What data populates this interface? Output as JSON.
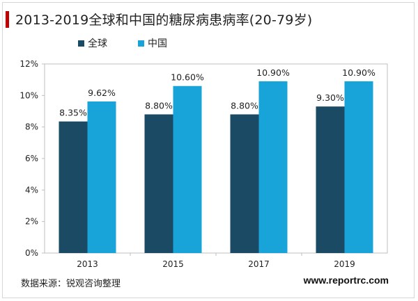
{
  "title": "2013-2019全球和中国的糖尿病患病率(20-79岁)",
  "legend": [
    {
      "name": "全球",
      "color": "#1b4a64"
    },
    {
      "name": "中国",
      "color": "#18a3d9"
    }
  ],
  "source": "数据来源：锐观咨询整理",
  "website": "www.reportrc.com",
  "chart_data": {
    "type": "bar",
    "categories": [
      "2013",
      "2015",
      "2017",
      "2019"
    ],
    "series": [
      {
        "name": "全球",
        "values": [
          8.35,
          8.8,
          8.8,
          9.3
        ],
        "labels": [
          "8.35%",
          "8.80%",
          "8.80%",
          "9.30%"
        ],
        "color": "#1b4a64"
      },
      {
        "name": "中国",
        "values": [
          9.62,
          10.6,
          10.9,
          10.9
        ],
        "labels": [
          "9.62%",
          "10.60%",
          "10.90%",
          "10.90%"
        ],
        "color": "#18a3d9"
      }
    ],
    "ylim": [
      0,
      12
    ],
    "yticks": [
      0,
      2,
      4,
      6,
      8,
      10,
      12
    ],
    "ytick_labels": [
      "0%",
      "2%",
      "4%",
      "6%",
      "8%",
      "10%",
      "12%"
    ],
    "grid": false,
    "legend_position": "top"
  }
}
